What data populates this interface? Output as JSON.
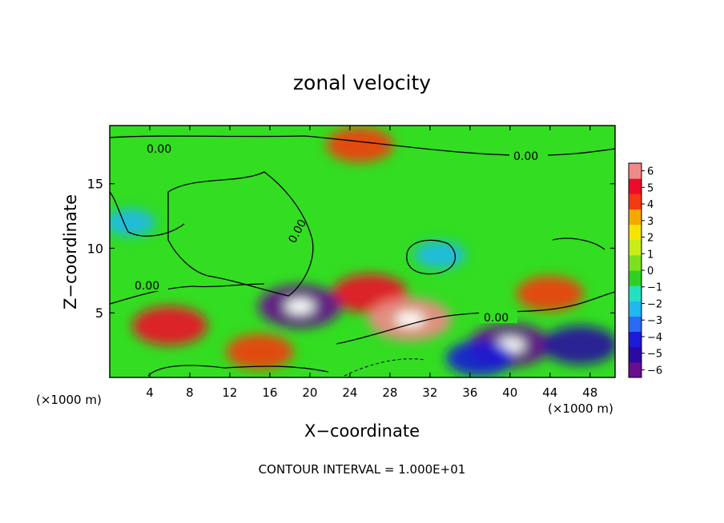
{
  "chart_data": {
    "type": "heatmap",
    "title": "zonal velocity",
    "xlabel": "X−coordinate",
    "ylabel": "Z−coordinate",
    "x_unit_label": "(×1000 m)",
    "x_unit_label_right": "(×1000 m)",
    "xlim": [
      0,
      50.5
    ],
    "ylim": [
      0,
      19.5
    ],
    "x_ticks": [
      4,
      8,
      12,
      16,
      20,
      24,
      28,
      32,
      36,
      40,
      44,
      48
    ],
    "y_ticks": [
      5,
      10,
      15
    ],
    "colorbar": {
      "ticks": [
        6,
        5,
        4,
        3,
        2,
        1,
        0,
        -1,
        -2,
        -3,
        -4,
        -5,
        -6
      ],
      "tick_labels": [
        "6",
        "5",
        "4",
        "3",
        "2",
        "1",
        "0",
        "−1",
        "−2",
        "−3",
        "−4",
        "−5",
        "−6"
      ],
      "colors": [
        "#6a0d8f",
        "#2a0aa0",
        "#1b1bd8",
        "#2a6bf5",
        "#1fb8f0",
        "#22e0c0",
        "#30d020",
        "#7de01c",
        "#c8ee18",
        "#f5e400",
        "#f5a800",
        "#f53a12",
        "#ee0a2a",
        "#f08a8a"
      ]
    },
    "contour_labels": [
      "0.00",
      "0.00",
      "0.00",
      "0.00",
      "0.00"
    ],
    "footer": "CONTOUR INTERVAL = 1.000E+01",
    "regions": [
      {
        "x": 26,
        "z": 6.5,
        "value": 5
      },
      {
        "x": 30,
        "z": 4.5,
        "value": 6
      },
      {
        "x": 19,
        "z": 5.5,
        "value": -6
      },
      {
        "x": 25,
        "z": 18,
        "value": 4
      },
      {
        "x": 6,
        "z": 4,
        "value": 5
      },
      {
        "x": 33,
        "z": 9.5,
        "value": -2
      },
      {
        "x": 2,
        "z": 12,
        "value": -2
      },
      {
        "x": 40,
        "z": 2.5,
        "value": -6
      },
      {
        "x": 47,
        "z": 2.5,
        "value": -5
      },
      {
        "x": 37,
        "z": 1.5,
        "value": -4
      },
      {
        "x": 15,
        "z": 2,
        "value": 4
      },
      {
        "x": 44,
        "z": 6.5,
        "value": 4
      }
    ]
  }
}
